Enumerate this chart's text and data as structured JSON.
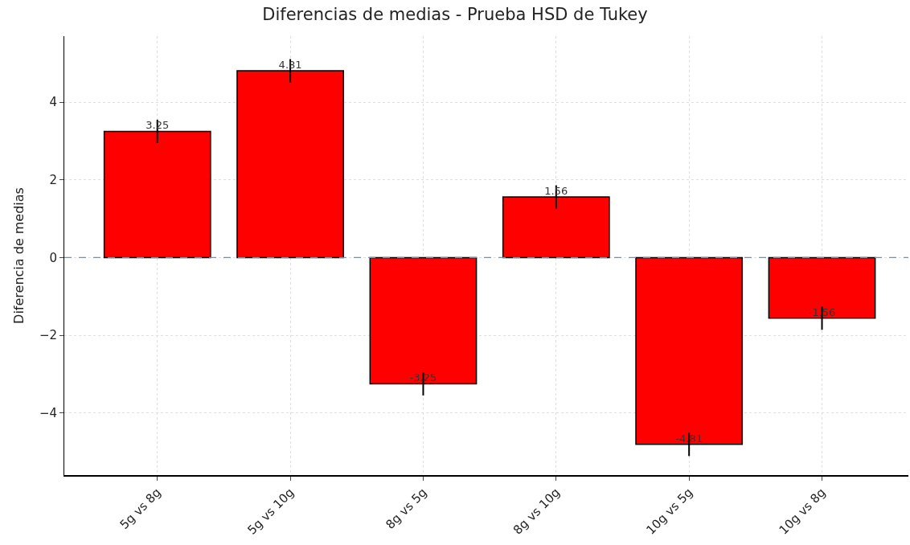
{
  "chart_data": {
    "type": "bar",
    "title": "Diferencias de medias - Prueba HSD de Tukey",
    "ylabel": "Diferencia de medias",
    "categories": [
      "5g vs 8g",
      "5g vs 10g",
      "8g vs 5g",
      "8g vs 10g",
      "10g vs 5g",
      "10g vs 8g"
    ],
    "values": [
      3.25,
      4.81,
      -3.25,
      1.56,
      -4.81,
      -1.56
    ],
    "errors": [
      0.3,
      0.3,
      0.3,
      0.3,
      0.3,
      0.3
    ],
    "color": "#ff0000",
    "data_labels": true,
    "ylim": [
      -5.6,
      5.7
    ],
    "yticks": [
      {
        "value": -4,
        "label": "−4"
      },
      {
        "value": -2,
        "label": "−2"
      },
      0,
      2,
      4
    ],
    "grid": true,
    "ref_lines": [
      {
        "axis": "y",
        "value": 0,
        "color": "#7f8c9a",
        "line_style": "dashed"
      }
    ]
  }
}
